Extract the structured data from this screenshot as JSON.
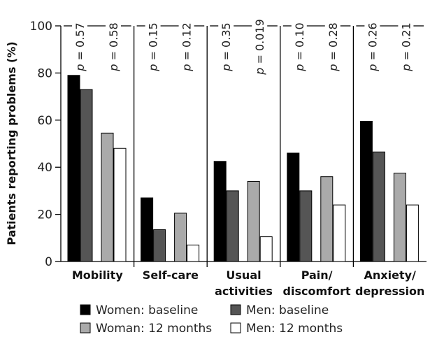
{
  "chart_data": {
    "type": "bar",
    "ylabel": "Patients reporting problems (%)",
    "xlabel": "",
    "ylim": [
      0,
      100
    ],
    "yticks": [
      0,
      20,
      40,
      60,
      80,
      100
    ],
    "grid": false,
    "legend_position": "bottom",
    "categories": [
      {
        "lines": [
          "Mobility"
        ]
      },
      {
        "lines": [
          "Self-care"
        ]
      },
      {
        "lines": [
          "Usual",
          "activities"
        ]
      },
      {
        "lines": [
          "Pain/",
          "discomfort"
        ]
      },
      {
        "lines": [
          "Anxiety/",
          "depression"
        ]
      }
    ],
    "series": [
      {
        "name": "Women: baseline",
        "color": "#000000",
        "values": [
          79,
          27,
          42.5,
          46,
          59.5
        ]
      },
      {
        "name": "Men: baseline",
        "color": "#555555",
        "values": [
          73,
          13.5,
          30,
          30,
          46.5
        ]
      },
      {
        "name": "Woman: 12 months",
        "color": "#aaaaaa",
        "values": [
          54.5,
          20.5,
          34,
          36,
          37.5
        ]
      },
      {
        "name": "Men: 12 months",
        "color": "#ffffff",
        "values": [
          48,
          7,
          10.5,
          24,
          24
        ]
      }
    ],
    "p_value_prefix": "p",
    "p_values": [
      [
        "0.57",
        "0.58"
      ],
      [
        "0.15",
        "0.12"
      ],
      [
        "0.35",
        "0.019"
      ],
      [
        "0.10",
        "0.28"
      ],
      [
        "0.26",
        "0.21"
      ]
    ]
  }
}
